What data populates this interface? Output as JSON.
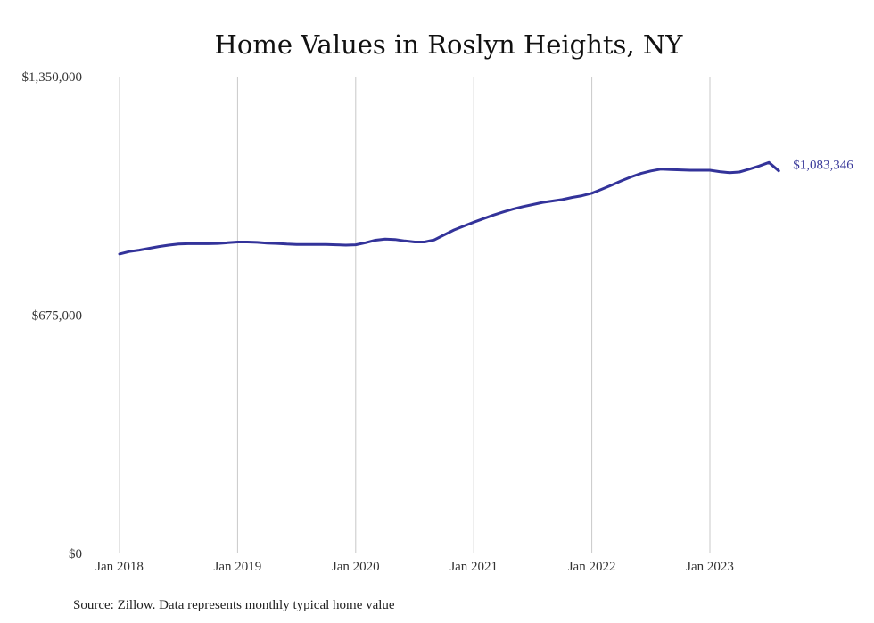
{
  "chart_data": {
    "type": "line",
    "title": "Home Values in Roslyn Heights, NY",
    "xlabel": "",
    "ylabel": "",
    "x_tick_labels": [
      "Jan 2018",
      "Jan 2019",
      "Jan 2020",
      "Jan 2021",
      "Jan 2022",
      "Jan 2023"
    ],
    "y_tick_labels": [
      "$0",
      "$675,000",
      "$1,350,000"
    ],
    "ylim": [
      0,
      1350000
    ],
    "xlim": [
      "2018-01",
      "2023-08"
    ],
    "grid": "vertical",
    "series_color": "#33339a",
    "end_label": "$1,083,346",
    "series": [
      {
        "x": [
          "2018-01",
          "2018-02",
          "2018-03",
          "2018-04",
          "2018-05",
          "2018-06",
          "2018-07",
          "2018-08",
          "2018-09",
          "2018-10",
          "2018-11",
          "2018-12",
          "2019-01",
          "2019-02",
          "2019-03",
          "2019-04",
          "2019-05",
          "2019-06",
          "2019-07",
          "2019-08",
          "2019-09",
          "2019-10",
          "2019-11",
          "2019-12",
          "2020-01",
          "2020-02",
          "2020-03",
          "2020-04",
          "2020-05",
          "2020-06",
          "2020-07",
          "2020-08",
          "2020-09",
          "2020-10",
          "2020-11",
          "2020-12",
          "2021-01",
          "2021-02",
          "2021-03",
          "2021-04",
          "2021-05",
          "2021-06",
          "2021-07",
          "2021-08",
          "2021-09",
          "2021-10",
          "2021-11",
          "2021-12",
          "2022-01",
          "2022-02",
          "2022-03",
          "2022-04",
          "2022-05",
          "2022-06",
          "2022-07",
          "2022-08",
          "2022-09",
          "2022-10",
          "2022-11",
          "2022-12",
          "2023-01",
          "2023-02",
          "2023-03",
          "2023-04",
          "2023-05",
          "2023-06",
          "2023-07",
          "2023-08"
        ],
        "y": [
          848000,
          855000,
          859000,
          864000,
          869000,
          873000,
          876000,
          877000,
          877000,
          877000,
          878000,
          880000,
          882000,
          882000,
          881000,
          879000,
          878000,
          876000,
          875000,
          875000,
          875000,
          875000,
          874000,
          873000,
          874000,
          880000,
          887000,
          890000,
          889000,
          885000,
          882000,
          882000,
          888000,
          902000,
          916000,
          927000,
          938000,
          948000,
          958000,
          967000,
          975000,
          982000,
          988000,
          994000,
          998000,
          1002000,
          1008000,
          1013000,
          1020000,
          1031000,
          1043000,
          1055000,
          1066000,
          1076000,
          1083000,
          1088000,
          1087000,
          1086000,
          1085000,
          1085000,
          1085000,
          1081000,
          1078000,
          1080000,
          1088000,
          1097000,
          1107000,
          1083346
        ]
      }
    ]
  },
  "source_note": "Source: Zillow. Data represents monthly typical home value"
}
